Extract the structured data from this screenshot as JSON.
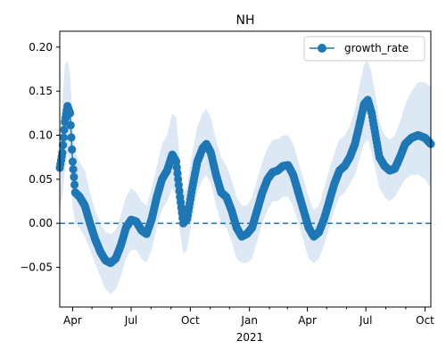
{
  "chart_data": {
    "type": "line",
    "title": "NH",
    "xlabel": "",
    "ylabel": "",
    "x_tick_labels": [
      "Apr",
      "Jul",
      "Oct",
      "Jan",
      "Apr",
      "Jul",
      "Oct"
    ],
    "x_year_label": "2021",
    "y_tick_labels": [
      "−0.05",
      "0.00",
      "0.05",
      "0.10",
      "0.15",
      "0.20"
    ],
    "y_ticks": [
      -0.05,
      0.0,
      0.05,
      0.1,
      0.15,
      0.2
    ],
    "ylim": [
      -0.095,
      0.218
    ],
    "xlim": [
      "2020-03-12",
      "2021-10-10"
    ],
    "grid": false,
    "legend_position": "top-right",
    "reference_line": {
      "y": 0.0,
      "style": "dashed"
    },
    "series": [
      {
        "name": "growth_rate",
        "color": "#1f77b4",
        "band_color": "#dce9f5",
        "points": [
          {
            "x": "2020-03-12",
            "y": 0.063,
            "lo": 0.02,
            "hi": 0.1
          },
          {
            "x": "2020-03-16",
            "y": 0.08,
            "lo": 0.03,
            "hi": 0.14
          },
          {
            "x": "2020-03-20",
            "y": 0.115,
            "lo": 0.06,
            "hi": 0.18
          },
          {
            "x": "2020-03-24",
            "y": 0.133,
            "lo": 0.08,
            "hi": 0.185
          },
          {
            "x": "2020-03-28",
            "y": 0.125,
            "lo": 0.07,
            "hi": 0.17
          },
          {
            "x": "2020-04-01",
            "y": 0.07,
            "lo": 0.02,
            "hi": 0.12
          },
          {
            "x": "2020-04-05",
            "y": 0.035,
            "lo": 0.0,
            "hi": 0.08
          },
          {
            "x": "2020-04-12",
            "y": 0.03,
            "lo": -0.005,
            "hi": 0.07
          },
          {
            "x": "2020-04-20",
            "y": 0.02,
            "lo": -0.015,
            "hi": 0.06
          },
          {
            "x": "2020-04-28",
            "y": 0.0,
            "lo": -0.03,
            "hi": 0.035
          },
          {
            "x": "2020-05-06",
            "y": -0.018,
            "lo": -0.045,
            "hi": 0.015
          },
          {
            "x": "2020-05-14",
            "y": -0.032,
            "lo": -0.06,
            "hi": 0.0
          },
          {
            "x": "2020-05-22",
            "y": -0.042,
            "lo": -0.075,
            "hi": -0.01
          },
          {
            "x": "2020-05-30",
            "y": -0.045,
            "lo": -0.08,
            "hi": -0.012
          },
          {
            "x": "2020-06-07",
            "y": -0.04,
            "lo": -0.075,
            "hi": -0.008
          },
          {
            "x": "2020-06-15",
            "y": -0.025,
            "lo": -0.06,
            "hi": 0.01
          },
          {
            "x": "2020-06-23",
            "y": -0.005,
            "lo": -0.04,
            "hi": 0.03
          },
          {
            "x": "2020-07-01",
            "y": 0.004,
            "lo": -0.03,
            "hi": 0.04
          },
          {
            "x": "2020-07-09",
            "y": 0.002,
            "lo": -0.03,
            "hi": 0.035
          },
          {
            "x": "2020-07-17",
            "y": -0.008,
            "lo": -0.04,
            "hi": 0.025
          },
          {
            "x": "2020-07-25",
            "y": -0.012,
            "lo": -0.045,
            "hi": 0.02
          },
          {
            "x": "2020-08-02",
            "y": 0.005,
            "lo": -0.03,
            "hi": 0.04
          },
          {
            "x": "2020-08-10",
            "y": 0.03,
            "lo": -0.005,
            "hi": 0.065
          },
          {
            "x": "2020-08-18",
            "y": 0.05,
            "lo": 0.015,
            "hi": 0.09
          },
          {
            "x": "2020-08-26",
            "y": 0.06,
            "lo": 0.025,
            "hi": 0.1
          },
          {
            "x": "2020-09-03",
            "y": 0.078,
            "lo": 0.04,
            "hi": 0.125
          },
          {
            "x": "2020-09-09",
            "y": 0.07,
            "lo": 0.03,
            "hi": 0.12
          },
          {
            "x": "2020-09-15",
            "y": 0.03,
            "lo": -0.01,
            "hi": 0.07
          },
          {
            "x": "2020-09-20",
            "y": 0.0,
            "lo": -0.035,
            "hi": 0.035
          },
          {
            "x": "2020-09-26",
            "y": 0.005,
            "lo": -0.03,
            "hi": 0.04
          },
          {
            "x": "2020-10-04",
            "y": 0.04,
            "lo": 0.005,
            "hi": 0.08
          },
          {
            "x": "2020-10-12",
            "y": 0.07,
            "lo": 0.035,
            "hi": 0.11
          },
          {
            "x": "2020-10-20",
            "y": 0.085,
            "lo": 0.05,
            "hi": 0.125
          },
          {
            "x": "2020-10-26",
            "y": 0.09,
            "lo": 0.055,
            "hi": 0.13
          },
          {
            "x": "2020-11-02",
            "y": 0.08,
            "lo": 0.045,
            "hi": 0.12
          },
          {
            "x": "2020-11-10",
            "y": 0.055,
            "lo": 0.02,
            "hi": 0.095
          },
          {
            "x": "2020-11-18",
            "y": 0.035,
            "lo": 0.0,
            "hi": 0.075
          },
          {
            "x": "2020-11-26",
            "y": 0.03,
            "lo": -0.005,
            "hi": 0.065
          },
          {
            "x": "2020-12-04",
            "y": 0.015,
            "lo": -0.02,
            "hi": 0.05
          },
          {
            "x": "2020-12-12",
            "y": -0.005,
            "lo": -0.04,
            "hi": 0.03
          },
          {
            "x": "2020-12-20",
            "y": -0.015,
            "lo": -0.045,
            "hi": 0.02
          },
          {
            "x": "2020-12-28",
            "y": -0.012,
            "lo": -0.045,
            "hi": 0.02
          },
          {
            "x": "2021-01-05",
            "y": -0.005,
            "lo": -0.04,
            "hi": 0.03
          },
          {
            "x": "2021-01-13",
            "y": 0.015,
            "lo": -0.02,
            "hi": 0.05
          },
          {
            "x": "2021-01-21",
            "y": 0.035,
            "lo": 0.0,
            "hi": 0.07
          },
          {
            "x": "2021-01-29",
            "y": 0.05,
            "lo": 0.015,
            "hi": 0.085
          },
          {
            "x": "2021-02-06",
            "y": 0.058,
            "lo": 0.025,
            "hi": 0.095
          },
          {
            "x": "2021-02-14",
            "y": 0.06,
            "lo": 0.025,
            "hi": 0.095
          },
          {
            "x": "2021-02-22",
            "y": 0.065,
            "lo": 0.03,
            "hi": 0.1
          },
          {
            "x": "2021-03-02",
            "y": 0.066,
            "lo": 0.03,
            "hi": 0.1
          },
          {
            "x": "2021-03-10",
            "y": 0.055,
            "lo": 0.02,
            "hi": 0.09
          },
          {
            "x": "2021-03-18",
            "y": 0.035,
            "lo": 0.0,
            "hi": 0.07
          },
          {
            "x": "2021-03-26",
            "y": 0.015,
            "lo": -0.02,
            "hi": 0.05
          },
          {
            "x": "2021-04-03",
            "y": -0.005,
            "lo": -0.04,
            "hi": 0.03
          },
          {
            "x": "2021-04-11",
            "y": -0.015,
            "lo": -0.045,
            "hi": 0.015
          },
          {
            "x": "2021-04-19",
            "y": -0.01,
            "lo": -0.04,
            "hi": 0.02
          },
          {
            "x": "2021-04-27",
            "y": 0.005,
            "lo": -0.025,
            "hi": 0.04
          },
          {
            "x": "2021-05-05",
            "y": 0.025,
            "lo": -0.005,
            "hi": 0.06
          },
          {
            "x": "2021-05-13",
            "y": 0.045,
            "lo": 0.015,
            "hi": 0.08
          },
          {
            "x": "2021-05-21",
            "y": 0.06,
            "lo": 0.03,
            "hi": 0.095
          },
          {
            "x": "2021-05-29",
            "y": 0.065,
            "lo": 0.035,
            "hi": 0.1
          },
          {
            "x": "2021-06-06",
            "y": 0.075,
            "lo": 0.045,
            "hi": 0.11
          },
          {
            "x": "2021-06-14",
            "y": 0.09,
            "lo": 0.055,
            "hi": 0.13
          },
          {
            "x": "2021-06-22",
            "y": 0.115,
            "lo": 0.075,
            "hi": 0.16
          },
          {
            "x": "2021-06-28",
            "y": 0.135,
            "lo": 0.09,
            "hi": 0.18
          },
          {
            "x": "2021-07-04",
            "y": 0.14,
            "lo": 0.095,
            "hi": 0.185
          },
          {
            "x": "2021-07-10",
            "y": 0.125,
            "lo": 0.08,
            "hi": 0.17
          },
          {
            "x": "2021-07-16",
            "y": 0.1,
            "lo": 0.06,
            "hi": 0.145
          },
          {
            "x": "2021-07-22",
            "y": 0.075,
            "lo": 0.04,
            "hi": 0.115
          },
          {
            "x": "2021-07-30",
            "y": 0.065,
            "lo": 0.03,
            "hi": 0.1
          },
          {
            "x": "2021-08-07",
            "y": 0.06,
            "lo": 0.025,
            "hi": 0.095
          },
          {
            "x": "2021-08-15",
            "y": 0.062,
            "lo": 0.03,
            "hi": 0.1
          },
          {
            "x": "2021-08-23",
            "y": 0.075,
            "lo": 0.04,
            "hi": 0.115
          },
          {
            "x": "2021-08-31",
            "y": 0.09,
            "lo": 0.05,
            "hi": 0.135
          },
          {
            "x": "2021-09-10",
            "y": 0.097,
            "lo": 0.055,
            "hi": 0.15
          },
          {
            "x": "2021-09-20",
            "y": 0.1,
            "lo": 0.055,
            "hi": 0.16
          },
          {
            "x": "2021-10-01",
            "y": 0.097,
            "lo": 0.05,
            "hi": 0.16
          },
          {
            "x": "2021-10-10",
            "y": 0.09,
            "lo": 0.04,
            "hi": 0.155
          }
        ]
      }
    ]
  }
}
